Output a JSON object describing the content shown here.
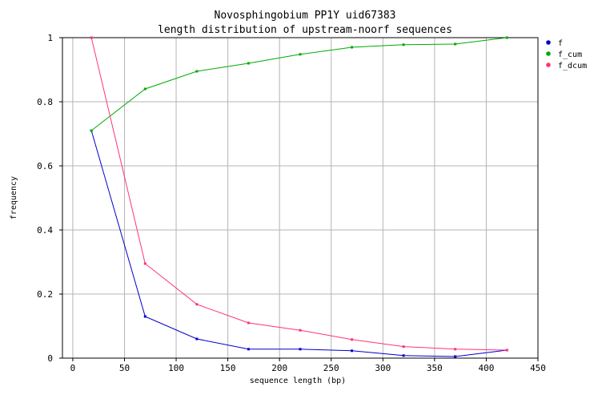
{
  "chart_data": {
    "type": "line",
    "title": "Novosphingobium PP1Y uid67383",
    "subtitle": "length distribution of upstream-noorf sequences",
    "xlabel": "sequence length (bp)",
    "ylabel": "frequency",
    "xlim": [
      -10,
      450
    ],
    "ylim": [
      0,
      1
    ],
    "xticks": [
      0,
      50,
      100,
      150,
      200,
      250,
      300,
      350,
      400,
      450
    ],
    "yticks": [
      0,
      0.2,
      0.4,
      0.6,
      0.8,
      1
    ],
    "ytick_labels": [
      "0",
      "0.2",
      "0.4",
      "0.6",
      "0.8",
      "1"
    ],
    "grid": true,
    "legend_position": "right",
    "x": [
      18,
      70,
      120,
      170,
      220,
      270,
      320,
      370,
      420
    ],
    "series": [
      {
        "name": "f",
        "color": "#0000cc",
        "values": [
          0.71,
          0.13,
          0.06,
          0.028,
          0.028,
          0.023,
          0.008,
          0.005,
          0.025
        ]
      },
      {
        "name": "f_cum",
        "color": "#00aa00",
        "values": [
          0.71,
          0.84,
          0.895,
          0.92,
          0.948,
          0.97,
          0.978,
          0.98,
          1.0
        ]
      },
      {
        "name": "f_dcum",
        "color": "#ff3377",
        "values": [
          1.0,
          0.295,
          0.168,
          0.11,
          0.087,
          0.058,
          0.036,
          0.028,
          0.025
        ]
      }
    ]
  }
}
